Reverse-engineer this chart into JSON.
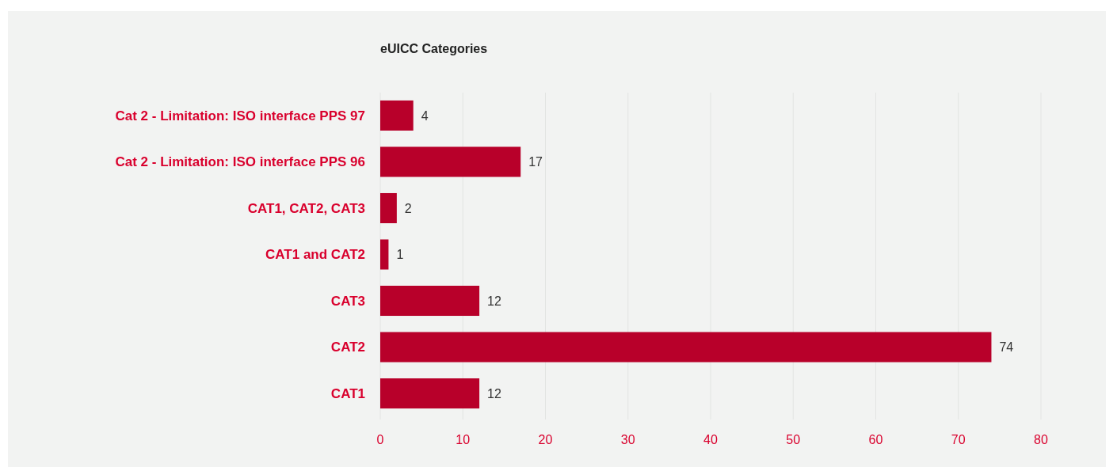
{
  "chart_data": {
    "type": "bar",
    "orientation": "horizontal",
    "title": "eUICC Categories",
    "categories": [
      "Cat 2 - Limitation: ISO interface PPS 97",
      "Cat 2 - Limitation: ISO interface PPS 96",
      "CAT1, CAT2, CAT3",
      "CAT1 and CAT2",
      "CAT3",
      "CAT2",
      "CAT1"
    ],
    "values": [
      4,
      17,
      2,
      1,
      12,
      74,
      12
    ],
    "color": "#b8002a",
    "xlim": [
      0,
      80
    ],
    "xticks": [
      0,
      10,
      20,
      30,
      40,
      50,
      60,
      70,
      80
    ],
    "grid": "x",
    "data_labels": true
  }
}
